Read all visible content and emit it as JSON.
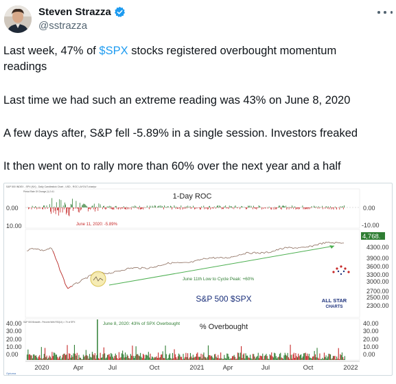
{
  "author": {
    "name": "Steven Strazza",
    "handle": "@sstrazza",
    "verified": true
  },
  "icons": {
    "verified": "verified-badge-icon",
    "more": "more-options-icon"
  },
  "colors": {
    "cashtag": "#1d9bf0",
    "verified": "#1d9bf0",
    "roc_up": "#2e7d32",
    "roc_down": "#c62828",
    "spx_label_bg": "#2e7d32"
  },
  "tweet": {
    "p1_before": "Last week, 47% of ",
    "p1_cashtag": "$SPX",
    "p1_after": " stocks registered overbought momentum",
    "p1_line2": "readings",
    "p2": "Last time we had such an extreme reading was 43% on June 8, 2020",
    "p3": "A few days after, S&P fell -5.89% in a single session. Investors freaked",
    "p4": "It then went on to rally more than 60% over the next year and a half"
  },
  "chart": {
    "header_small": "S&P 500 INDEX - SPX (NX) - Daily Candlestick Chart - USD - ROC LAYOUT.chartpv",
    "roc_panel": {
      "title": "1-Day ROC",
      "legend": "Period Rate Of Change (1) 0.41",
      "annotation": "June 11, 2020: -5.89%",
      "y_left": [
        "0.00",
        "10.00"
      ],
      "y_right": [
        "0.00",
        "-10.00"
      ]
    },
    "price_panel": {
      "last_price": "4,768.",
      "arrow_label": "June 11th Low to Cycle Peak: +60%",
      "title": "S&P 500 $SPX",
      "y_ticks": [
        "4300.00",
        "3900.00",
        "3600.00",
        "3300.00",
        "3000.00",
        "2700.00",
        "2500.00",
        "2300.00"
      ],
      "watermark_line1": "ALL STAR",
      "watermark_line2": "CHARTS"
    },
    "breadth_panel": {
      "header_small": "S&P 500 Breadth - Percent With RSI(14) > 70 of SPX",
      "annotation": "June 8, 2020: 43% of SPX Overbought",
      "title": "% Overbought",
      "y_ticks": [
        "40.00",
        "30.00",
        "20.00",
        "10.00",
        "0.00"
      ]
    },
    "x_axis": [
      "2020",
      "Apr",
      "Jul",
      "Oct",
      "2021",
      "Apr",
      "Jul",
      "Oct",
      "2022"
    ],
    "footer_logo": "Optuma"
  }
}
